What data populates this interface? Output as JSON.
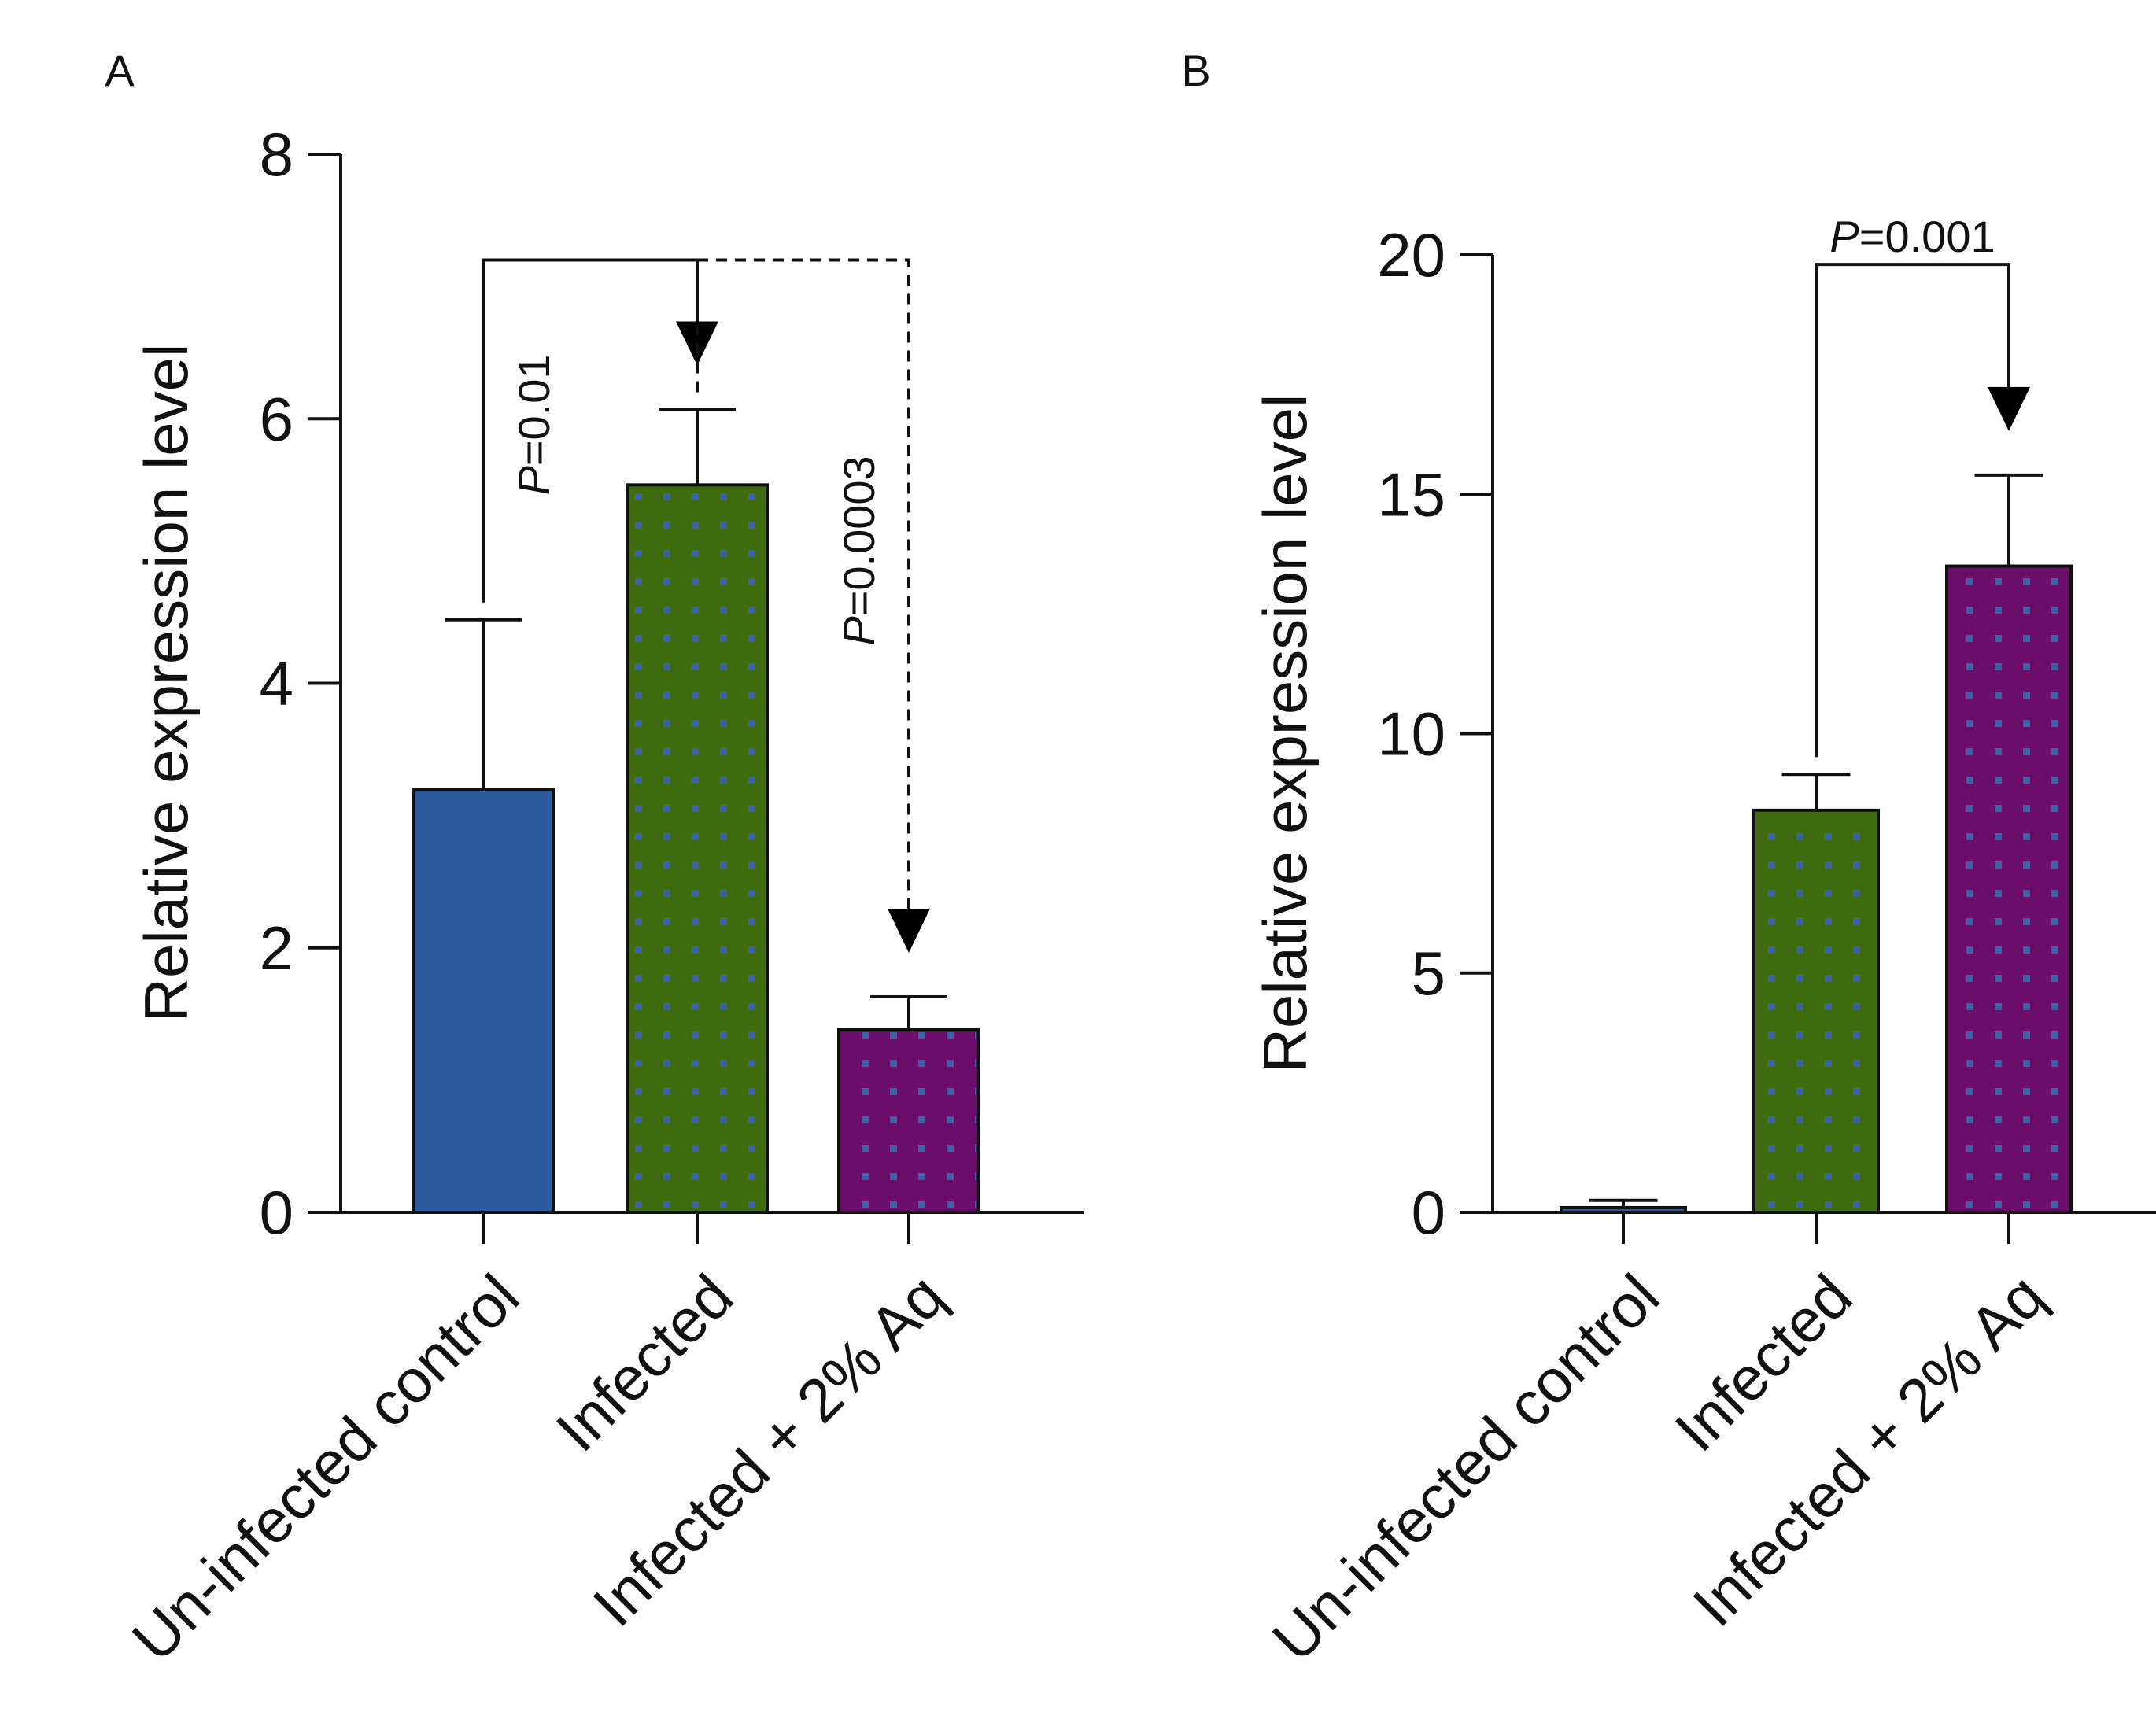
{
  "chart_data": [
    {
      "panel": "A",
      "type": "bar",
      "categories": [
        "Un-infected control",
        "Infected",
        "Infected + 2% Aq"
      ],
      "values": [
        3.2,
        5.5,
        1.38
      ],
      "error_upper": [
        4.48,
        6.07,
        1.63
      ],
      "ylabel": "Relative expression level",
      "xlabel": "",
      "ylim": [
        0,
        8
      ],
      "yticks": [
        "0",
        "2",
        "4",
        "6",
        "8"
      ],
      "grid": false,
      "bar_colors": [
        "#2e5aa0",
        "#3d6b0d",
        "#6b0d6b"
      ],
      "dot_color": "#3a62a8",
      "annotations": [
        {
          "from": 0,
          "to": 1,
          "style": "solid",
          "p_prefix": "P",
          "p_value": "=0.01",
          "level": 7.2,
          "label_rotated": true
        },
        {
          "from": 1,
          "to": 2,
          "style": "dashed",
          "p_prefix": "P",
          "p_value": "=0.0003",
          "level": 7.2,
          "label_rotated": true
        }
      ]
    },
    {
      "panel": "B",
      "type": "bar",
      "categories": [
        "Un-infected control",
        "Infected",
        "Infected + 2% Aq"
      ],
      "values": [
        0.1,
        8.4,
        13.5
      ],
      "error_upper": [
        0.25,
        9.15,
        15.4
      ],
      "ylabel": "Relative expression level",
      "xlabel": "",
      "ylim": [
        0,
        20
      ],
      "yticks": [
        "0",
        "5",
        "10",
        "15",
        "20"
      ],
      "grid": false,
      "bar_colors": [
        "#2e5aa0",
        "#3d6b0d",
        "#6b0d6b"
      ],
      "dot_color": "#3a62a8",
      "annotations": [
        {
          "from": 1,
          "to": 2,
          "style": "solid",
          "p_prefix": "P",
          "p_value": "=0.001",
          "level": 19.8,
          "label_rotated": false
        }
      ]
    }
  ]
}
